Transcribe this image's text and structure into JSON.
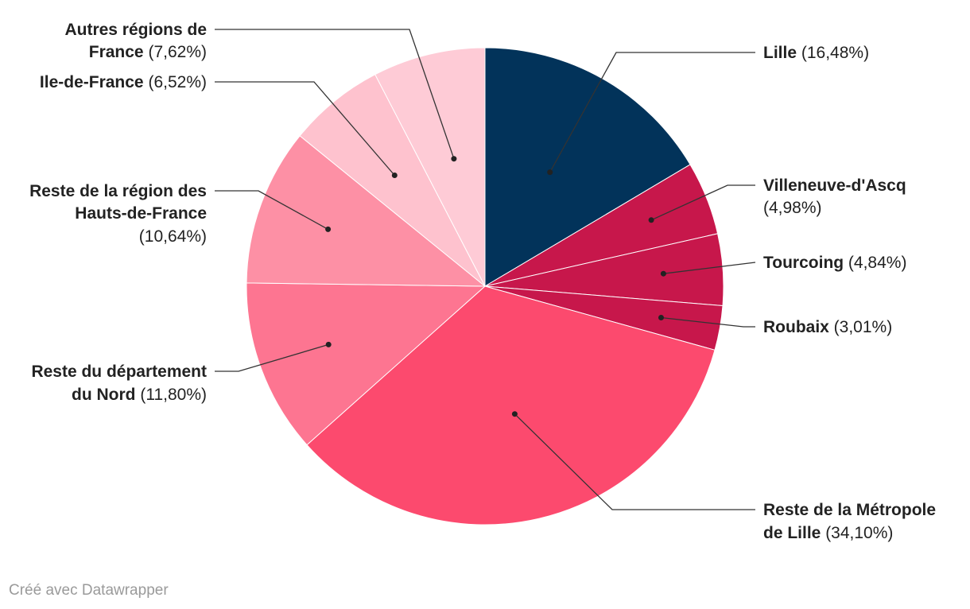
{
  "chart_data": {
    "type": "pie",
    "slices": [
      {
        "name": "Lille",
        "value": 16.48,
        "label": "(16,48%)",
        "color": "#02335a"
      },
      {
        "name": "Villeneuve-d'Ascq",
        "value": 4.98,
        "label": "(4,98%)",
        "color": "#c7174b"
      },
      {
        "name": "Tourcoing",
        "value": 4.84,
        "label": "(4,84%)",
        "color": "#c7174b"
      },
      {
        "name": "Roubaix",
        "value": 3.01,
        "label": "(3,01%)",
        "color": "#c7174b"
      },
      {
        "name": "Reste de la Métropole de Lille",
        "value": 34.1,
        "label": "(34,10%)",
        "color": "#fc4a6e"
      },
      {
        "name": "Reste du département du Nord",
        "value": 11.8,
        "label": "(11,80%)",
        "color": "#fd7591"
      },
      {
        "name": "Reste de la région des Hauts-de-France",
        "value": 10.64,
        "label": "(10,64%)",
        "color": "#fd90a5"
      },
      {
        "name": "Ile-de-France",
        "value": 6.52,
        "label": "(6,52%)",
        "color": "#fec2ce"
      },
      {
        "name": "Autres régions de France",
        "value": 7.62,
        "label": "(7,62%)",
        "color": "#fecbd6"
      }
    ]
  },
  "footer": "Créé avec Datawrapper"
}
